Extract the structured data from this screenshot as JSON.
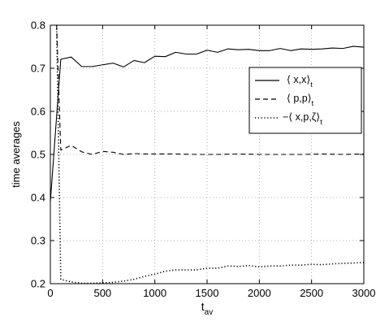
{
  "chart_data": {
    "type": "line",
    "title": "",
    "xlabel": "t",
    "xlabel_sub": "av",
    "ylabel": "time averages",
    "xlim": [
      0,
      3000
    ],
    "ylim": [
      0.2,
      0.8
    ],
    "xticks": [
      0,
      500,
      1000,
      1500,
      2000,
      2500,
      3000
    ],
    "yticks": [
      0.2,
      0.3,
      0.4,
      0.5,
      0.6,
      0.7,
      0.8
    ],
    "grid": "dotted",
    "legend_position": "right, upper-middle",
    "series": [
      {
        "name": "⟨ x,x⟩",
        "name_sub": "t",
        "style": "solid",
        "color": "#000000",
        "x": [
          0,
          100,
          200,
          300,
          400,
          500,
          600,
          700,
          800,
          900,
          1000,
          1100,
          1200,
          1300,
          1400,
          1500,
          1600,
          1700,
          1800,
          1900,
          2000,
          2100,
          2200,
          2300,
          2400,
          2500,
          2600,
          2700,
          2800,
          2900,
          3000
        ],
        "y": [
          0.39,
          0.721,
          0.726,
          0.704,
          0.704,
          0.708,
          0.712,
          0.703,
          0.718,
          0.713,
          0.728,
          0.727,
          0.737,
          0.733,
          0.733,
          0.742,
          0.737,
          0.745,
          0.743,
          0.744,
          0.741,
          0.741,
          0.746,
          0.741,
          0.745,
          0.744,
          0.745,
          0.747,
          0.746,
          0.751,
          0.749
        ]
      },
      {
        "name": "⟨ p,p⟩",
        "name_sub": "t",
        "style": "dashed",
        "color": "#000000",
        "x": [
          60,
          100,
          200,
          300,
          400,
          500,
          600,
          700,
          800,
          900,
          1000,
          1200,
          1400,
          1600,
          1800,
          2000,
          2200,
          2400,
          2600,
          2800,
          3000
        ],
        "y": [
          0.8,
          0.51,
          0.521,
          0.506,
          0.5,
          0.507,
          0.505,
          0.5,
          0.502,
          0.501,
          0.501,
          0.501,
          0.5,
          0.5,
          0.501,
          0.5,
          0.5,
          0.5,
          0.501,
          0.5,
          0.501
        ]
      },
      {
        "name": "−⟨ x,p,ζ⟩",
        "name_sub": "t",
        "style": "dotted",
        "color": "#000000",
        "x": [
          60,
          100,
          200,
          300,
          400,
          500,
          600,
          700,
          800,
          900,
          1000,
          1100,
          1200,
          1300,
          1400,
          1500,
          1600,
          1700,
          1800,
          1900,
          2000,
          2100,
          2200,
          2300,
          2400,
          2500,
          2600,
          2700,
          2800,
          2900,
          3000
        ],
        "y": [
          0.8,
          0.21,
          0.204,
          0.201,
          0.201,
          0.202,
          0.203,
          0.206,
          0.21,
          0.217,
          0.222,
          0.229,
          0.232,
          0.232,
          0.232,
          0.236,
          0.236,
          0.241,
          0.24,
          0.242,
          0.239,
          0.241,
          0.241,
          0.243,
          0.243,
          0.245,
          0.244,
          0.246,
          0.247,
          0.248,
          0.249
        ]
      }
    ]
  }
}
